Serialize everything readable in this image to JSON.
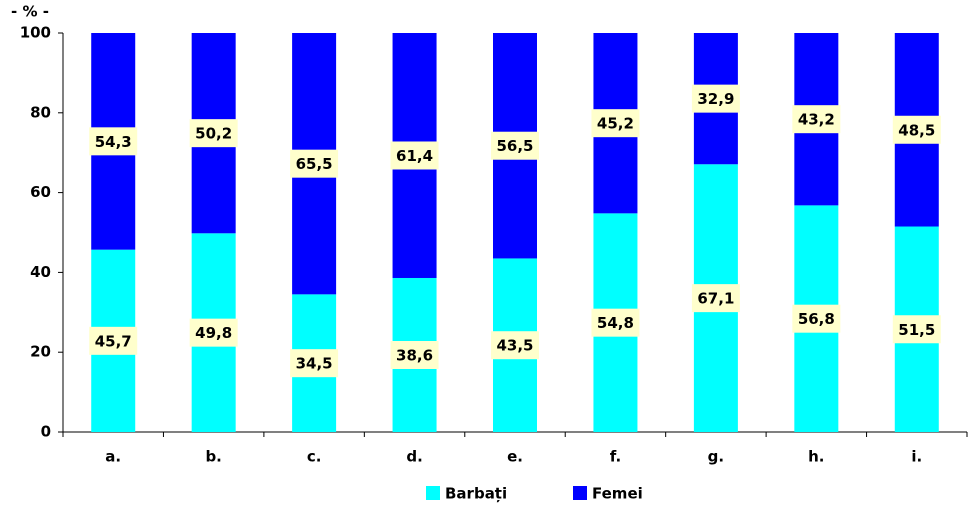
{
  "chart_data": {
    "type": "stacked_bar",
    "y_unit_label": "- % -",
    "categories": [
      "a.",
      "b.",
      "c.",
      "d.",
      "e.",
      "f.",
      "g.",
      "h.",
      "i."
    ],
    "series": [
      {
        "name": "Barbați",
        "color": "#00ffff",
        "values": [
          45.7,
          49.8,
          34.5,
          38.6,
          43.5,
          54.8,
          67.1,
          56.8,
          51.5
        ],
        "value_labels": [
          "45,7",
          "49,8",
          "34,5",
          "38,6",
          "43,5",
          "54,8",
          "67,1",
          "56,8",
          "51,5"
        ]
      },
      {
        "name": "Femei",
        "color": "#0000ff",
        "values": [
          54.3,
          50.2,
          65.5,
          61.4,
          56.5,
          45.2,
          32.9,
          43.2,
          48.5
        ],
        "value_labels": [
          "54,3",
          "50,2",
          "65,5",
          "61,4",
          "56,5",
          "45,2",
          "32,9",
          "43,2",
          "48,5"
        ]
      }
    ],
    "ylim": [
      0,
      100
    ],
    "yticks": [
      0,
      20,
      40,
      60,
      80,
      100
    ]
  }
}
